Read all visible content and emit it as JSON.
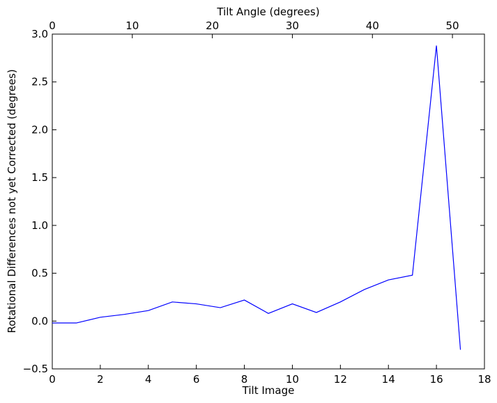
{
  "chart_data": {
    "type": "line",
    "xlabel": "Tilt Image",
    "ylabel": "Rotational Differences not yet Corrected (degrees)",
    "top_xlabel": "Tilt Angle (degrees)",
    "xlim": [
      0,
      18
    ],
    "ylim": [
      -0.5,
      3.0
    ],
    "top_xlim": [
      0,
      54
    ],
    "x_ticks": [
      0,
      2,
      4,
      6,
      8,
      10,
      12,
      14,
      16,
      18
    ],
    "x_tick_labels": [
      "0",
      "2",
      "4",
      "6",
      "8",
      "10",
      "12",
      "14",
      "16",
      "18"
    ],
    "y_ticks": [
      -0.5,
      0.0,
      0.5,
      1.0,
      1.5,
      2.0,
      2.5,
      3.0
    ],
    "y_tick_labels": [
      "−0.5",
      "0.0",
      "0.5",
      "1.0",
      "1.5",
      "2.0",
      "2.5",
      "3.0"
    ],
    "top_x_ticks": [
      0,
      10,
      20,
      30,
      40,
      50
    ],
    "top_x_tick_labels": [
      "0",
      "10",
      "20",
      "30",
      "40",
      "50"
    ],
    "grid": false,
    "series": [
      {
        "color": "#0000ff",
        "x": [
          0,
          1,
          2,
          3,
          4,
          5,
          6,
          7,
          8,
          9,
          10,
          11,
          12,
          13,
          14,
          15,
          16,
          17
        ],
        "y": [
          -0.02,
          -0.02,
          0.04,
          0.07,
          0.11,
          0.2,
          0.18,
          0.14,
          0.22,
          0.08,
          0.18,
          0.09,
          0.2,
          0.33,
          0.43,
          0.48,
          2.88,
          -0.3
        ]
      }
    ]
  }
}
